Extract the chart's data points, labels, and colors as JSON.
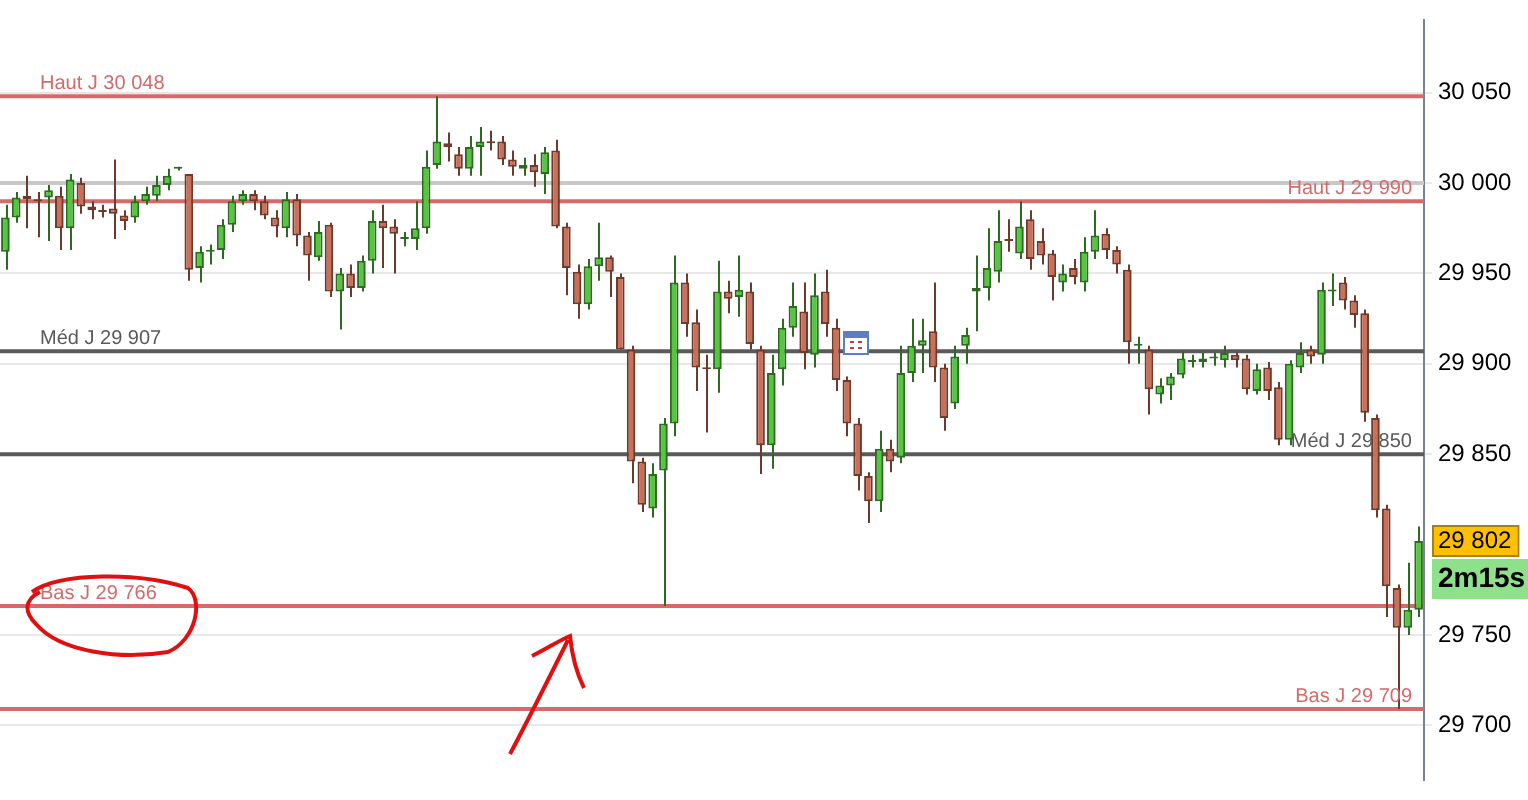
{
  "chart_data": {
    "type": "candlestick",
    "categories": [
      null,
      null,
      null,
      null,
      null,
      null,
      null,
      null,
      null,
      null,
      null,
      null,
      null,
      null,
      null,
      null,
      null,
      null,
      null,
      null,
      null,
      null,
      null,
      null,
      null,
      null,
      null,
      null,
      null,
      null,
      null,
      null,
      null,
      null,
      null,
      null,
      null,
      null,
      null,
      null,
      null,
      null,
      null,
      null,
      null,
      null,
      null,
      null,
      null,
      null,
      null,
      null,
      null,
      null,
      null,
      null,
      null,
      null,
      null,
      null,
      null,
      null,
      null,
      null,
      null,
      null,
      null,
      null,
      null,
      null,
      null,
      null,
      null,
      null,
      null,
      null,
      null,
      null,
      null,
      null,
      null,
      null,
      null,
      null,
      null,
      null,
      null,
      null,
      null,
      null,
      null,
      null,
      null,
      null,
      null,
      null,
      null,
      null,
      null,
      null,
      null,
      null,
      null,
      null,
      null,
      null,
      null,
      null,
      null,
      null,
      null,
      null,
      null,
      null,
      null,
      null,
      null,
      null,
      null,
      null,
      null,
      null,
      null,
      null,
      null,
      null,
      null,
      null,
      null,
      null,
      null,
      null
    ],
    "ohlc": [
      [
        29962,
        29988,
        29952,
        29981
      ],
      [
        29981,
        29995,
        29978,
        29992
      ],
      [
        29993,
        30004,
        29975,
        29991
      ],
      [
        29991,
        29995,
        29970,
        29990
      ],
      [
        29992,
        29999,
        29968,
        29996
      ],
      [
        29993,
        29998,
        29963,
        29975
      ],
      [
        29975,
        30005,
        29963,
        30002
      ],
      [
        30000,
        30003,
        29983,
        29987
      ],
      [
        29987,
        29990,
        29980,
        29985
      ],
      [
        29985,
        29988,
        29981,
        29984
      ],
      [
        29986,
        30013,
        29969,
        29983
      ],
      [
        29982,
        29985,
        29974,
        29979
      ],
      [
        29981,
        29993,
        29978,
        29990
      ],
      [
        29990,
        29998,
        29988,
        29994
      ],
      [
        29993,
        30004,
        29990,
        29999
      ],
      [
        29999,
        30008,
        29996,
        30004
      ],
      [
        30008,
        30009,
        30007,
        30008
      ],
      [
        30005,
        30005,
        29946,
        29952
      ],
      [
        29953,
        29965,
        29945,
        29962
      ],
      [
        29962,
        29966,
        29955,
        29963
      ],
      [
        29963,
        29980,
        29958,
        29977
      ],
      [
        29977,
        29993,
        29973,
        29990
      ],
      [
        29990,
        29996,
        29988,
        29994
      ],
      [
        29994,
        29996,
        29985,
        29990
      ],
      [
        29990,
        29993,
        29980,
        29982
      ],
      [
        29981,
        29985,
        29970,
        29976
      ],
      [
        29975,
        29995,
        29970,
        29991
      ],
      [
        29991,
        29994,
        29965,
        29971
      ],
      [
        29971,
        29973,
        29946,
        29960
      ],
      [
        29959,
        29979,
        29957,
        29973
      ],
      [
        29977,
        29978,
        29937,
        29940
      ],
      [
        29940,
        29953,
        29919,
        29950
      ],
      [
        29950,
        29955,
        29937,
        29942
      ],
      [
        29942,
        29960,
        29940,
        29957
      ],
      [
        29957,
        29985,
        29950,
        29979
      ],
      [
        29979,
        29988,
        29953,
        29975
      ],
      [
        29976,
        29980,
        29950,
        29972
      ],
      [
        29969,
        29973,
        29965,
        29970
      ],
      [
        29969,
        29990,
        29963,
        29975
      ],
      [
        29975,
        30018,
        29972,
        30009
      ],
      [
        30010,
        30048,
        30008,
        30023
      ],
      [
        30022,
        30028,
        30012,
        30020
      ],
      [
        30016,
        30020,
        30004,
        30008
      ],
      [
        30008,
        30026,
        30004,
        30020
      ],
      [
        30020,
        30031,
        30004,
        30023
      ],
      [
        30023,
        30029,
        30018,
        30022
      ],
      [
        30023,
        30026,
        30010,
        30013
      ],
      [
        30013,
        30018,
        30004,
        30009
      ],
      [
        30008,
        30014,
        30004,
        30010
      ],
      [
        30010,
        30016,
        29998,
        30006
      ],
      [
        30005,
        30020,
        29994,
        30017
      ],
      [
        30018,
        30024,
        29975,
        29976
      ],
      [
        29976,
        29978,
        29938,
        29953
      ],
      [
        29951,
        29955,
        29925,
        29933
      ],
      [
        29933,
        29958,
        29930,
        29954
      ],
      [
        29954,
        29978,
        29946,
        29959
      ],
      [
        29959,
        29960,
        29937,
        29951
      ],
      [
        29948,
        29950,
        29908,
        29908
      ],
      [
        29908,
        29910,
        29834,
        29846
      ],
      [
        29846,
        29848,
        29818,
        29822
      ],
      [
        29820,
        29845,
        29815,
        29839
      ],
      [
        29841,
        29870,
        29766,
        29867
      ],
      [
        29867,
        29960,
        29860,
        29945
      ],
      [
        29945,
        29950,
        29915,
        29922
      ],
      [
        29923,
        29930,
        29885,
        29898
      ],
      [
        29898,
        29905,
        29862,
        29897
      ],
      [
        29897,
        29957,
        29884,
        29940
      ],
      [
        29940,
        29946,
        29928,
        29936
      ],
      [
        29937,
        29960,
        29926,
        29941
      ],
      [
        29940,
        29945,
        29908,
        29911
      ],
      [
        29908,
        29910,
        29839,
        29855
      ],
      [
        29855,
        29905,
        29842,
        29895
      ],
      [
        29897,
        29925,
        29888,
        29920
      ],
      [
        29920,
        29945,
        29915,
        29932
      ],
      [
        29929,
        29945,
        29897,
        29906
      ],
      [
        29905,
        29950,
        29898,
        29938
      ],
      [
        29940,
        29952,
        29915,
        29922
      ],
      [
        29920,
        29925,
        29885,
        29891
      ],
      [
        29891,
        29893,
        29860,
        29867
      ],
      [
        29867,
        29870,
        29830,
        29838
      ],
      [
        29838,
        29840,
        29812,
        29824
      ],
      [
        29824,
        29863,
        29818,
        29853
      ],
      [
        29853,
        29858,
        29840,
        29846
      ],
      [
        29848,
        29910,
        29845,
        29895
      ],
      [
        29895,
        29925,
        29890,
        29910
      ],
      [
        29910,
        29925,
        29895,
        29913
      ],
      [
        29918,
        29945,
        29890,
        29898
      ],
      [
        29898,
        29900,
        29863,
        29870
      ],
      [
        29878,
        29910,
        29875,
        29904
      ],
      [
        29910,
        29920,
        29900,
        29916
      ],
      [
        29940,
        29960,
        29918,
        29942
      ],
      [
        29942,
        29975,
        29935,
        29953
      ],
      [
        29951,
        29985,
        29945,
        29968
      ],
      [
        29969,
        29980,
        29962,
        29968
      ],
      [
        29961,
        29990,
        29958,
        29976
      ],
      [
        29980,
        29985,
        29952,
        29958
      ],
      [
        29968,
        29975,
        29955,
        29960
      ],
      [
        29961,
        29963,
        29935,
        29948
      ],
      [
        29945,
        29955,
        29940,
        29950
      ],
      [
        29953,
        29958,
        29944,
        29948
      ],
      [
        29945,
        29970,
        29940,
        29962
      ],
      [
        29962,
        29985,
        29958,
        29971
      ],
      [
        29972,
        29975,
        29958,
        29963
      ],
      [
        29963,
        29965,
        29950,
        29955
      ],
      [
        29952,
        29955,
        29900,
        29912
      ],
      [
        29910,
        29915,
        29900,
        29911
      ],
      [
        29908,
        29910,
        29872,
        29886
      ],
      [
        29883,
        29892,
        29878,
        29888
      ],
      [
        29888,
        29895,
        29880,
        29893
      ],
      [
        29894,
        29907,
        29892,
        29903
      ],
      [
        29901,
        29905,
        29898,
        29902
      ],
      [
        29901,
        29906,
        29898,
        29903
      ],
      [
        29903,
        29906,
        29899,
        29903
      ],
      [
        29902,
        29910,
        29898,
        29906
      ],
      [
        29905,
        29906,
        29898,
        29902
      ],
      [
        29903,
        29905,
        29883,
        29886
      ],
      [
        29885,
        29900,
        29883,
        29897
      ],
      [
        29898,
        29901,
        29880,
        29885
      ],
      [
        29887,
        29890,
        29855,
        29858
      ],
      [
        29858,
        29902,
        29855,
        29900
      ],
      [
        29898,
        29912,
        29895,
        29906
      ],
      [
        29908,
        29910,
        29900,
        29904
      ],
      [
        29905,
        29945,
        29900,
        29941
      ],
      [
        29940,
        29950,
        29932,
        29941
      ],
      [
        29945,
        29948,
        29930,
        29935
      ],
      [
        29935,
        29938,
        29920,
        29927
      ],
      [
        29928,
        29930,
        29868,
        29873
      ],
      [
        29870,
        29872,
        29815,
        29819
      ],
      [
        29820,
        29822,
        29760,
        29777
      ],
      [
        29776,
        29778,
        29709,
        29754
      ],
      [
        29754,
        29790,
        29750,
        29764
      ],
      [
        29764,
        29810,
        29760,
        29802
      ]
    ],
    "ylim": [
      29670,
      30090
    ],
    "yticks": [
      {
        "value": 29700,
        "label": "29 700"
      },
      {
        "value": 29750,
        "label": "29 750"
      },
      {
        "value": 29850,
        "label": "29 850"
      },
      {
        "value": 29900,
        "label": "29 900"
      },
      {
        "value": 29950,
        "label": "29 950"
      },
      {
        "value": 30000,
        "label": "30 000"
      },
      {
        "value": 30050,
        "label": "30 050"
      }
    ],
    "ref_lines": [
      {
        "axis": "y",
        "value": 30048,
        "label": "Haut J 30 048",
        "color": "#d46a6a"
      },
      {
        "axis": "y",
        "value": 29907,
        "label": "Méd J 29 907",
        "color": "#5a5a5a"
      },
      {
        "axis": "y",
        "value": 29766,
        "label": "Bas J 29 766",
        "color": "#d46a6a"
      },
      {
        "axis": "y",
        "value": 29990,
        "label": "Haut J 29 990",
        "color": "#d46a6a"
      },
      {
        "axis": "y",
        "value": 29850,
        "label": "Méd J 29 850",
        "color": "#5a5a5a"
      },
      {
        "axis": "y",
        "value": 29709,
        "label": "Bas J 29 709",
        "color": "#d46a6a"
      },
      {
        "axis": "y",
        "value": 30000,
        "label": null,
        "color": "#c8c8c8"
      }
    ],
    "annotations": [
      "29 802",
      "2m15s"
    ],
    "grid": "y",
    "legend": false,
    "tick_labels": "y"
  }
}
